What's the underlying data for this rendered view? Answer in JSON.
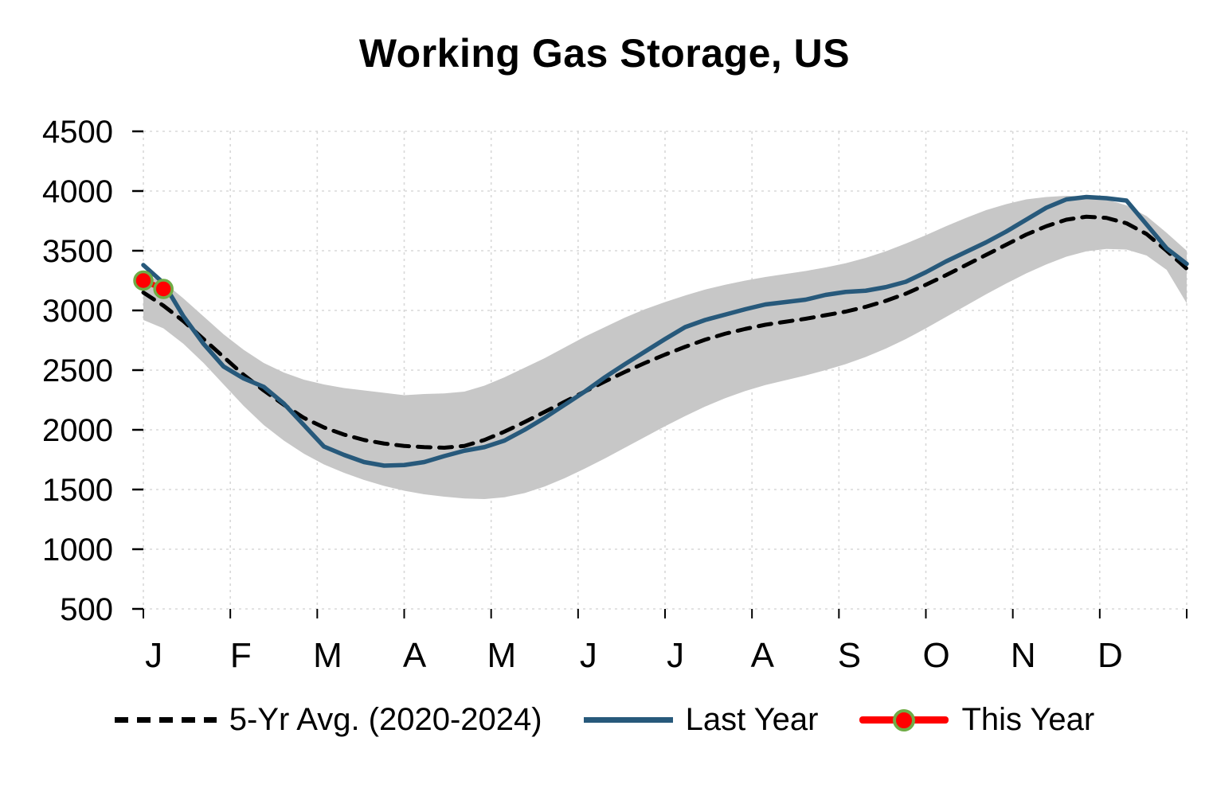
{
  "chart_data": {
    "type": "line",
    "title": "Working Gas Storage, US",
    "xlabel": "",
    "ylabel": "",
    "ylim": [
      500,
      4500
    ],
    "ytick_step": 500,
    "ytick_labels": [
      "500",
      "1000",
      "1500",
      "2000",
      "2500",
      "3000",
      "3500",
      "4000",
      "4500"
    ],
    "month_labels": [
      "J",
      "F",
      "M",
      "A",
      "M",
      "J",
      "J",
      "A",
      "S",
      "O",
      "N",
      "D"
    ],
    "grid": true,
    "legend_position": "bottom",
    "band": {
      "name": "5-yr range",
      "upper": [
        3300,
        3240,
        3100,
        2950,
        2800,
        2670,
        2560,
        2480,
        2420,
        2380,
        2350,
        2330,
        2310,
        2290,
        2300,
        2305,
        2320,
        2370,
        2440,
        2520,
        2600,
        2690,
        2780,
        2860,
        2940,
        3010,
        3070,
        3125,
        3175,
        3215,
        3250,
        3280,
        3305,
        3330,
        3360,
        3395,
        3440,
        3495,
        3560,
        3630,
        3705,
        3775,
        3840,
        3890,
        3930,
        3950,
        3960,
        3955,
        3930,
        3880,
        3790,
        3650,
        3500
      ],
      "lower": [
        2920,
        2850,
        2720,
        2560,
        2380,
        2200,
        2040,
        1910,
        1800,
        1710,
        1640,
        1580,
        1530,
        1490,
        1460,
        1440,
        1425,
        1420,
        1435,
        1470,
        1525,
        1595,
        1675,
        1760,
        1850,
        1940,
        2030,
        2115,
        2195,
        2265,
        2325,
        2375,
        2415,
        2455,
        2500,
        2550,
        2610,
        2680,
        2760,
        2850,
        2945,
        3040,
        3135,
        3225,
        3310,
        3385,
        3450,
        3495,
        3515,
        3510,
        3460,
        3340,
        3060
      ]
    },
    "series": [
      {
        "name": "5-Yr Avg. (2020-2024)",
        "style": "dashed-black",
        "values": [
          3150,
          3040,
          2910,
          2760,
          2610,
          2460,
          2330,
          2210,
          2100,
          2020,
          1960,
          1915,
          1885,
          1865,
          1855,
          1850,
          1865,
          1915,
          1985,
          2065,
          2150,
          2235,
          2320,
          2405,
          2485,
          2560,
          2630,
          2695,
          2755,
          2805,
          2845,
          2880,
          2905,
          2930,
          2960,
          2990,
          3030,
          3080,
          3140,
          3215,
          3295,
          3380,
          3465,
          3550,
          3635,
          3705,
          3760,
          3785,
          3775,
          3730,
          3640,
          3500,
          3350
        ]
      },
      {
        "name": "Last Year",
        "style": "solid-blue",
        "values": [
          3380,
          3230,
          2950,
          2720,
          2530,
          2430,
          2360,
          2220,
          2040,
          1860,
          1790,
          1730,
          1700,
          1705,
          1730,
          1780,
          1825,
          1855,
          1910,
          2000,
          2100,
          2210,
          2320,
          2440,
          2550,
          2655,
          2760,
          2860,
          2920,
          2965,
          3010,
          3050,
          3070,
          3090,
          3130,
          3155,
          3165,
          3195,
          3240,
          3320,
          3410,
          3490,
          3570,
          3660,
          3760,
          3860,
          3930,
          3950,
          3940,
          3920,
          3720,
          3520,
          3390
        ]
      },
      {
        "name": "This Year",
        "style": "red-line-markers",
        "values": [
          3250,
          3180
        ]
      }
    ],
    "colors": {
      "avg": "#000000",
      "last_year": "#27597B",
      "this_year": "#FF0000",
      "marker_ring": "#6FAC46",
      "band": "#C7C7C7",
      "grid": "#D8D8D8",
      "text": "#000000"
    }
  }
}
